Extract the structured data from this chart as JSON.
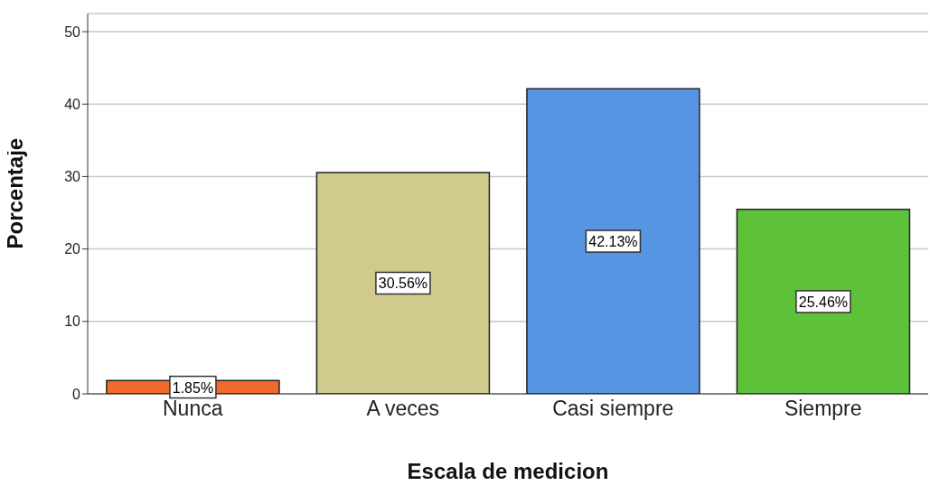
{
  "chart_data": {
    "type": "bar",
    "xlabel": "Escala de medicion",
    "ylabel": "Porcentaje",
    "categories": [
      "Nunca",
      "A veces",
      "Casi siempre",
      "Siempre"
    ],
    "values": [
      1.85,
      30.56,
      42.13,
      25.46
    ],
    "colors": [
      "#f26a2c",
      "#d0cb8c",
      "#5595e2",
      "#5dc23a"
    ],
    "value_labels": [
      "1.85%",
      "30.56%",
      "42.13%",
      "25.46%"
    ],
    "ylim": [
      0,
      52.5
    ],
    "yticks": [
      0,
      10,
      20,
      30,
      40,
      50
    ],
    "grid": "y",
    "legend": false
  }
}
